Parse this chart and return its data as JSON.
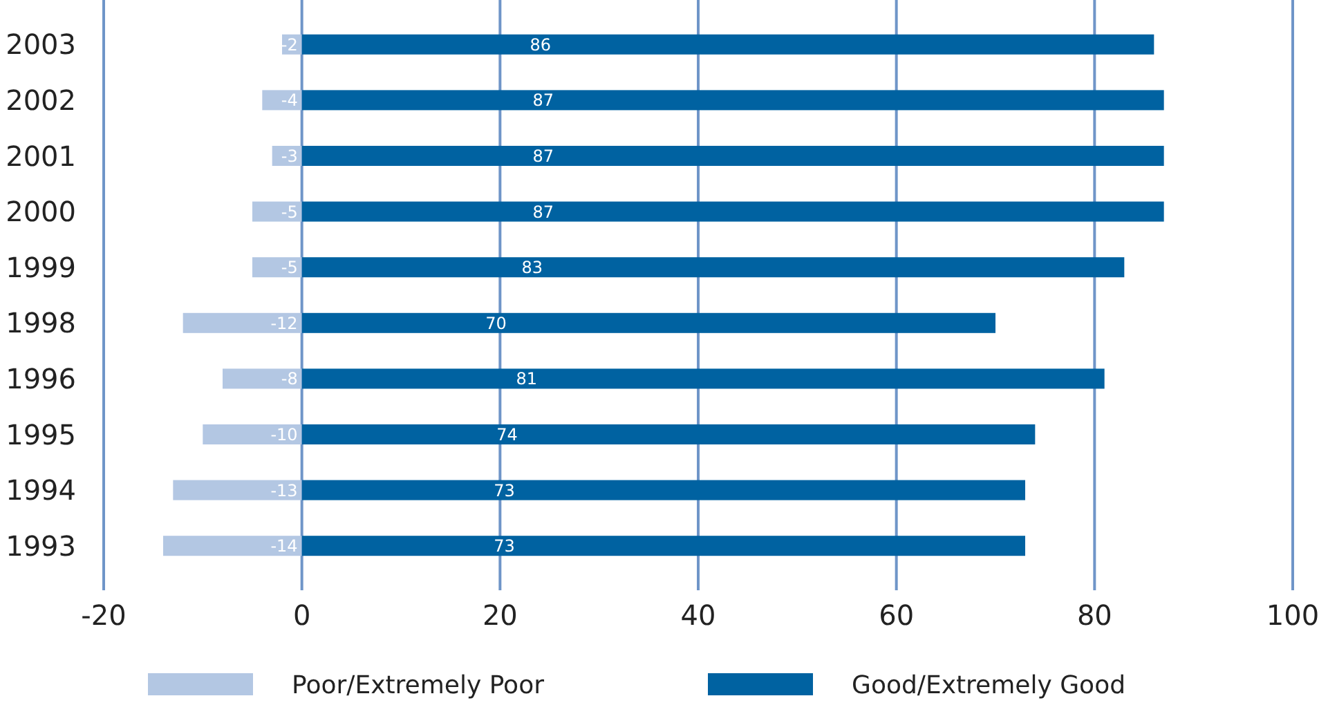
{
  "chart_data": {
    "type": "bar",
    "orientation": "horizontal",
    "stacked": true,
    "categories": [
      "2003",
      "2002",
      "2001",
      "2000",
      "1999",
      "1998",
      "1996",
      "1995",
      "1994",
      "1993"
    ],
    "series": [
      {
        "name": "Poor/Extremely Poor",
        "color": "#b3c7e3",
        "values": [
          -2,
          -4,
          -3,
          -5,
          -5,
          -12,
          -8,
          -10,
          -13,
          -14
        ]
      },
      {
        "name": "Good/Extremely Good",
        "color": "#0062a1",
        "values": [
          86,
          87,
          87,
          87,
          83,
          70,
          81,
          74,
          73,
          73
        ]
      }
    ],
    "xlim": [
      -20,
      100
    ],
    "xticks": [
      -20,
      0,
      20,
      40,
      60,
      80,
      100
    ],
    "grid": "x",
    "legend": "bottom",
    "data_labels": true
  }
}
